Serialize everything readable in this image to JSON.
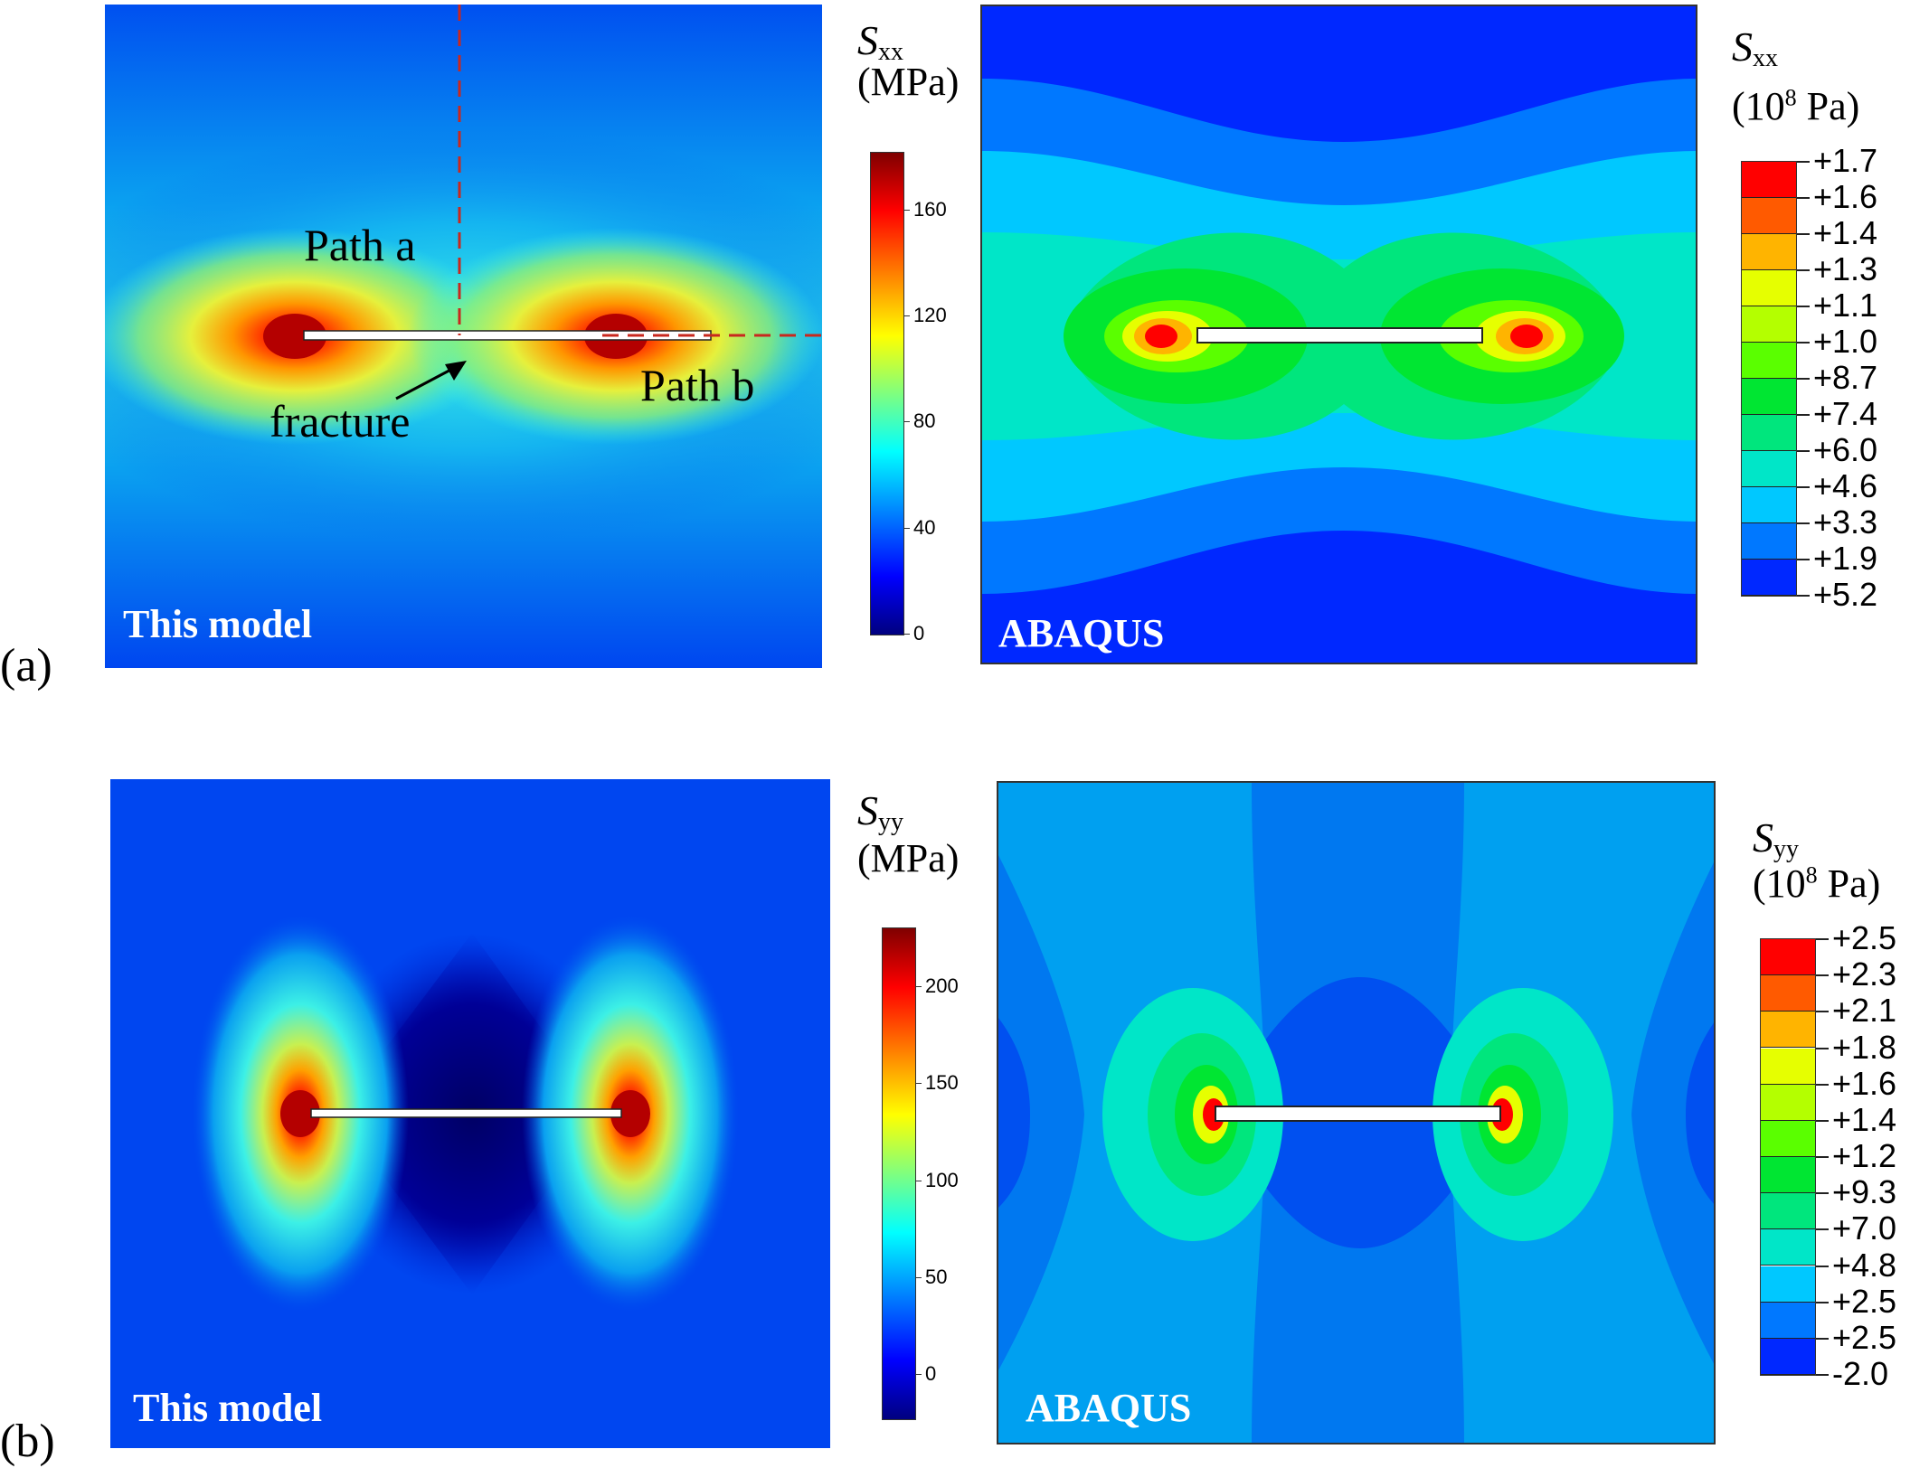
{
  "panel_labels": {
    "a": "(a)",
    "b": "(b)"
  },
  "panels": {
    "a_model": {
      "name": "This model",
      "path_a": "Path a",
      "path_b": "Path b",
      "fracture": "fracture"
    },
    "a_abaqus": {
      "name": "ABAQUS"
    },
    "b_model": {
      "name": "This model"
    },
    "b_abaqus": {
      "name": "ABAQUS"
    }
  },
  "colorbars": {
    "a_model": {
      "symbol": "S",
      "sub": "xx",
      "unit": "(MPa)",
      "ticks": [
        "160",
        "120",
        "80",
        "40",
        "0"
      ]
    },
    "a_abaqus": {
      "symbol": "S",
      "sub": "xx",
      "unit_pre": "(10",
      "unit_exp": "8",
      "unit_post": " Pa)",
      "ticks": [
        "+1.7",
        "+1.6",
        "+1.4",
        "+1.3",
        "+1.1",
        "+1.0",
        "+8.7",
        "+7.4",
        "+6.0",
        "+4.6",
        "+3.3",
        "+1.9",
        "+5.2"
      ]
    },
    "b_model": {
      "symbol": "S",
      "sub": "yy",
      "unit": "(MPa)",
      "ticks": [
        "200",
        "150",
        "100",
        "50",
        "0"
      ]
    },
    "b_abaqus": {
      "symbol": "S",
      "sub": "yy",
      "unit_pre": "(10",
      "unit_exp": "8",
      "unit_post": " Pa)",
      "ticks": [
        "+2.5",
        "+2.3",
        "+2.1",
        "+1.8",
        "+1.6",
        "+1.4",
        "+1.2",
        "+9.3",
        "+7.0",
        "+4.8",
        "+2.5",
        "+2.5",
        "-2.0"
      ]
    }
  },
  "colors": {
    "abaqus_bands": [
      "#ff0000",
      "#ff5a00",
      "#ffb400",
      "#e6ff00",
      "#b4ff00",
      "#5aff00",
      "#00e632",
      "#00e67d",
      "#00e6c8",
      "#00c8ff",
      "#0078ff",
      "#0028ff"
    ],
    "jet": [
      "#00007f",
      "#0000ff",
      "#007fff",
      "#00ffff",
      "#7fff7f",
      "#ffff00",
      "#ff7f00",
      "#ff0000",
      "#7f0000"
    ],
    "path_line": "#c8281e"
  }
}
